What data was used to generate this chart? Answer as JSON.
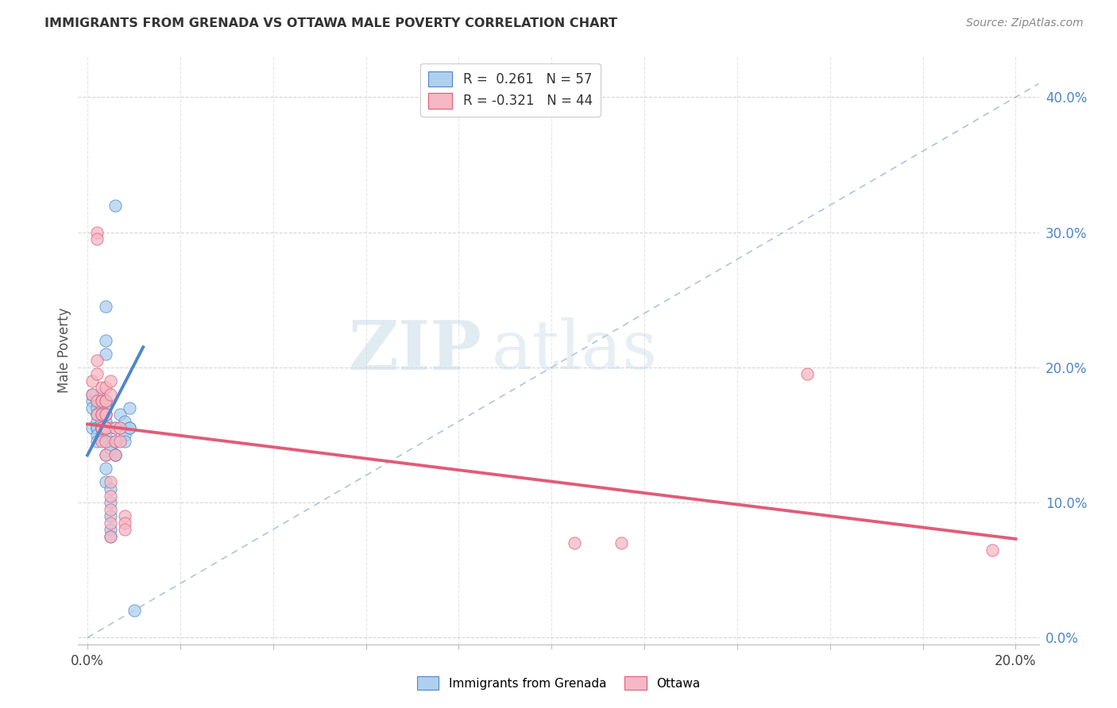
{
  "title": "IMMIGRANTS FROM GRENADA VS OTTAWA MALE POVERTY CORRELATION CHART",
  "source": "Source: ZipAtlas.com",
  "ylabel": "Male Poverty",
  "x_tick_positions": [
    0.0,
    0.02,
    0.04,
    0.06,
    0.08,
    0.1,
    0.12,
    0.14,
    0.16,
    0.18,
    0.2
  ],
  "x_tick_labels_show": [
    "0.0%",
    "",
    "",
    "",
    "",
    "",
    "",
    "",
    "",
    "",
    "20.0%"
  ],
  "y_tick_positions_right": [
    0.0,
    0.1,
    0.2,
    0.3,
    0.4
  ],
  "y_tick_labels_right": [
    "0.0%",
    "10.0%",
    "20.0%",
    "30.0%",
    "40.0%"
  ],
  "xlim": [
    -0.002,
    0.205
  ],
  "ylim": [
    -0.005,
    0.43
  ],
  "legend_series_1": "R =  0.261   N = 57",
  "legend_series_2": "R = -0.321   N = 44",
  "legend_bottom_1": "Immigrants from Grenada",
  "legend_bottom_2": "Ottawa",
  "blue_scatter": [
    [
      0.001,
      0.175
    ],
    [
      0.001,
      0.18
    ],
    [
      0.001,
      0.17
    ],
    [
      0.001,
      0.155
    ],
    [
      0.002,
      0.165
    ],
    [
      0.002,
      0.16
    ],
    [
      0.002,
      0.155
    ],
    [
      0.002,
      0.17
    ],
    [
      0.002,
      0.165
    ],
    [
      0.002,
      0.175
    ],
    [
      0.002,
      0.155
    ],
    [
      0.002,
      0.15
    ],
    [
      0.002,
      0.145
    ],
    [
      0.003,
      0.165
    ],
    [
      0.003,
      0.155
    ],
    [
      0.003,
      0.15
    ],
    [
      0.003,
      0.16
    ],
    [
      0.003,
      0.155
    ],
    [
      0.003,
      0.18
    ],
    [
      0.003,
      0.17
    ],
    [
      0.003,
      0.165
    ],
    [
      0.003,
      0.155
    ],
    [
      0.004,
      0.245
    ],
    [
      0.004,
      0.22
    ],
    [
      0.004,
      0.21
    ],
    [
      0.004,
      0.175
    ],
    [
      0.004,
      0.17
    ],
    [
      0.004,
      0.165
    ],
    [
      0.004,
      0.16
    ],
    [
      0.004,
      0.155
    ],
    [
      0.004,
      0.145
    ],
    [
      0.004,
      0.135
    ],
    [
      0.004,
      0.125
    ],
    [
      0.004,
      0.115
    ],
    [
      0.005,
      0.11
    ],
    [
      0.005,
      0.1
    ],
    [
      0.005,
      0.09
    ],
    [
      0.005,
      0.08
    ],
    [
      0.005,
      0.075
    ],
    [
      0.005,
      0.155
    ],
    [
      0.005,
      0.145
    ],
    [
      0.005,
      0.14
    ],
    [
      0.006,
      0.135
    ],
    [
      0.006,
      0.32
    ],
    [
      0.006,
      0.155
    ],
    [
      0.006,
      0.145
    ],
    [
      0.006,
      0.135
    ],
    [
      0.007,
      0.165
    ],
    [
      0.007,
      0.155
    ],
    [
      0.007,
      0.155
    ],
    [
      0.008,
      0.15
    ],
    [
      0.008,
      0.145
    ],
    [
      0.008,
      0.16
    ],
    [
      0.009,
      0.155
    ],
    [
      0.009,
      0.17
    ],
    [
      0.009,
      0.155
    ],
    [
      0.01,
      0.02
    ]
  ],
  "pink_scatter": [
    [
      0.001,
      0.19
    ],
    [
      0.001,
      0.18
    ],
    [
      0.002,
      0.175
    ],
    [
      0.002,
      0.165
    ],
    [
      0.002,
      0.3
    ],
    [
      0.002,
      0.295
    ],
    [
      0.002,
      0.205
    ],
    [
      0.002,
      0.195
    ],
    [
      0.003,
      0.185
    ],
    [
      0.003,
      0.175
    ],
    [
      0.003,
      0.165
    ],
    [
      0.003,
      0.155
    ],
    [
      0.003,
      0.145
    ],
    [
      0.003,
      0.175
    ],
    [
      0.003,
      0.165
    ],
    [
      0.003,
      0.155
    ],
    [
      0.004,
      0.185
    ],
    [
      0.004,
      0.175
    ],
    [
      0.004,
      0.165
    ],
    [
      0.004,
      0.155
    ],
    [
      0.004,
      0.175
    ],
    [
      0.004,
      0.165
    ],
    [
      0.004,
      0.155
    ],
    [
      0.004,
      0.145
    ],
    [
      0.004,
      0.135
    ],
    [
      0.005,
      0.115
    ],
    [
      0.005,
      0.105
    ],
    [
      0.005,
      0.095
    ],
    [
      0.005,
      0.085
    ],
    [
      0.005,
      0.075
    ],
    [
      0.005,
      0.19
    ],
    [
      0.005,
      0.18
    ],
    [
      0.006,
      0.155
    ],
    [
      0.006,
      0.145
    ],
    [
      0.006,
      0.135
    ],
    [
      0.007,
      0.155
    ],
    [
      0.007,
      0.145
    ],
    [
      0.008,
      0.09
    ],
    [
      0.008,
      0.085
    ],
    [
      0.008,
      0.08
    ],
    [
      0.105,
      0.07
    ],
    [
      0.115,
      0.07
    ],
    [
      0.155,
      0.195
    ],
    [
      0.195,
      0.065
    ]
  ],
  "blue_line_x": [
    0.0,
    0.012
  ],
  "blue_line_y": [
    0.135,
    0.215
  ],
  "pink_line_x": [
    0.0,
    0.2
  ],
  "pink_line_y": [
    0.158,
    0.073
  ],
  "dashed_line_x": [
    0.0,
    0.205
  ],
  "dashed_line_y": [
    0.0,
    0.41
  ],
  "blue_color": "#4f86c6",
  "pink_color": "#e05c78",
  "blue_fill": "#aed0ee",
  "pink_fill": "#f5b8c4",
  "dashed_color": "#a0bcd0",
  "watermark_zip": "ZIP",
  "watermark_atlas": "atlas",
  "background_color": "#ffffff",
  "grid_color": "#cccccc"
}
